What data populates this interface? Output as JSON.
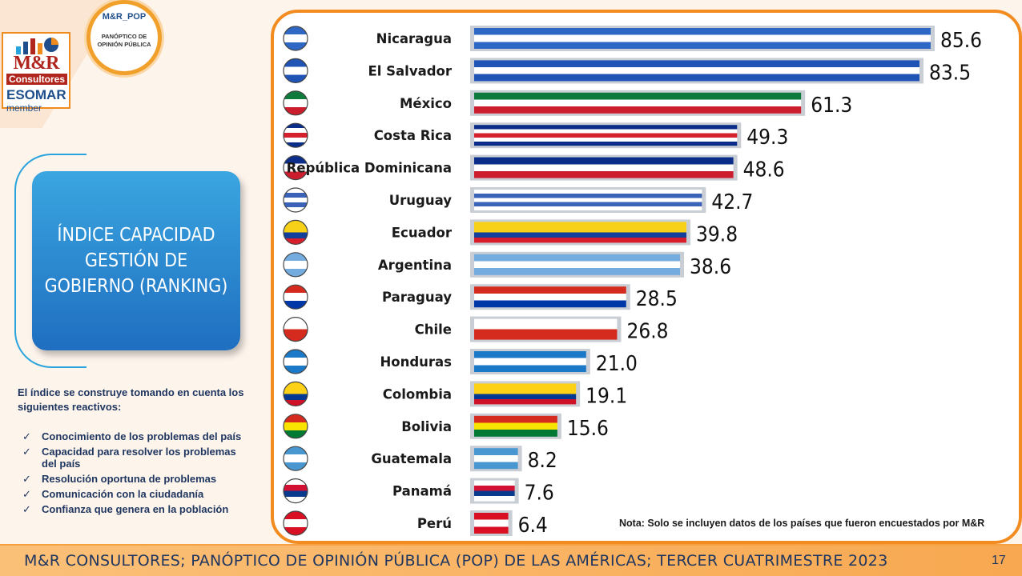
{
  "header": {
    "logo_title": "M&R",
    "logo_subtitle": "Consultores",
    "esomar": "ESOMAR",
    "member": "member",
    "badge_title": "M&R_POP",
    "badge_subtitle": "PANÓPTICO DE OPINIÓN PÚBLICA"
  },
  "index_box": {
    "title": "ÍNDICE CAPACIDAD GESTIÓN DE GOBIERNO (RANKING)"
  },
  "description": {
    "intro": "El índice se construye tomando en cuenta los siguientes reactivos:",
    "items": [
      "Conocimiento de los problemas del país",
      "Capacidad para resolver los problemas del país",
      "Resolución oportuna de problemas",
      "Comunicación con la ciudadanía",
      "Confianza que genera en la población"
    ],
    "check_glyph": "✓"
  },
  "chart_data": {
    "type": "bar",
    "orientation": "horizontal",
    "categories": [
      "Nicaragua",
      "El Salvador",
      "México",
      "Costa Rica",
      "República Dominicana",
      "Uruguay",
      "Ecuador",
      "Argentina",
      "Paraguay",
      "Chile",
      "Honduras",
      "Colombia",
      "Bolivia",
      "Guatemala",
      "Panamá",
      "Perú"
    ],
    "values": [
      85.6,
      83.5,
      61.3,
      49.3,
      48.6,
      42.7,
      39.8,
      38.6,
      28.5,
      26.8,
      21.0,
      19.1,
      15.6,
      8.2,
      7.6,
      6.4
    ],
    "value_labels": [
      "85.6",
      "83.5",
      "61.3",
      "49.3",
      "48.6",
      "42.7",
      "39.8",
      "38.6",
      "28.5",
      "26.8",
      "21.0",
      "19.1",
      "15.6",
      "8.2",
      "7.6",
      "6.4"
    ],
    "flag_colors": [
      [
        "#2f67c4",
        "#ffffff",
        "#2f67c4"
      ],
      [
        "#1f54b6",
        "#ffffff",
        "#1f54b6"
      ],
      [
        "#0e7a3c",
        "#ffffff",
        "#cc1d2e"
      ],
      [
        "#0b2d8a",
        "#ffffff",
        "#d5202d",
        "#ffffff",
        "#0b2d8a"
      ],
      [
        "#0b2d8a",
        "#ffffff",
        "#cc1d2e"
      ],
      [
        "#ffffff",
        "#3a63b8",
        "#ffffff",
        "#3a63b8",
        "#ffffff"
      ],
      [
        "#f7d117",
        "#f7d117",
        "#123f9a",
        "#d81e2a"
      ],
      [
        "#74acdf",
        "#ffffff",
        "#74acdf"
      ],
      [
        "#d52b1e",
        "#ffffff",
        "#0038a8"
      ],
      [
        "#ffffff",
        "#d52b1e"
      ],
      [
        "#1b79c8",
        "#ffffff",
        "#1b79c8"
      ],
      [
        "#fcd116",
        "#fcd116",
        "#003893",
        "#ce1126"
      ],
      [
        "#d52b1e",
        "#f9e300",
        "#007934"
      ],
      [
        "#4997d0",
        "#ffffff",
        "#4997d0"
      ],
      [
        "#ffffff",
        "#d21034",
        "#0a3a8c",
        "#ffffff"
      ],
      [
        "#d91023",
        "#ffffff",
        "#d91023"
      ]
    ],
    "xlim": [
      0,
      90
    ],
    "title": "",
    "xlabel": "",
    "ylabel": "",
    "grid": false,
    "legend": "none"
  },
  "note": "Nota: Solo se incluyen datos de los países que fueron encuestados por M&R",
  "footer": {
    "text": "M&R CONSULTORES; PANÓPTICO DE OPINIÓN PÚBLICA (POP) DE LAS AMÉRICAS; TERCER CUATRIMESTRE 2023",
    "page_number": "17"
  }
}
